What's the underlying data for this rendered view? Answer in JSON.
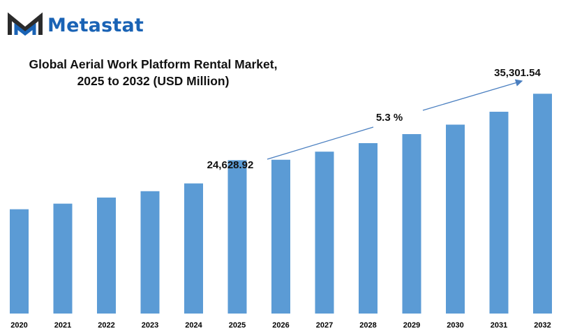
{
  "brand": {
    "name": "Metastat",
    "logo_icon": "metastat-m-logo-icon",
    "color": "#1a63b5"
  },
  "chart_data": {
    "type": "bar",
    "title": "Global Aerial Work Platform Rental Market, 2025 to 2032 (USD Million)",
    "xlabel": "",
    "ylabel": "",
    "categories": [
      "2020",
      "2021",
      "2022",
      "2023",
      "2024",
      "2025",
      "2026",
      "2027",
      "2028",
      "2029",
      "2030",
      "2031",
      "2032"
    ],
    "values": [
      16750,
      17650,
      18630,
      19650,
      20900,
      24628.92,
      24700,
      26000,
      27370,
      28820,
      30340,
      32410,
      35301.54
    ],
    "ylim": [
      0,
      36450
    ],
    "bar_color": "#5b9bd5",
    "grid": false,
    "legend": "none",
    "annotations": {
      "start_label": "24,628.92",
      "end_label": "35,301.54",
      "cagr_label": "5.3 %"
    }
  }
}
